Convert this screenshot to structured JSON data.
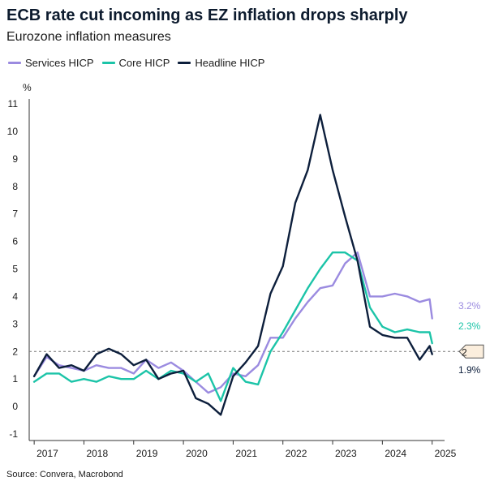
{
  "title": "ECB rate cut incoming as EZ inflation drops sharply",
  "subtitle": "Eurozone inflation measures",
  "source": "Source: Convera, Macrobond",
  "colors": {
    "services": "#9b8be0",
    "core": "#1cc4a8",
    "headline": "#0d1f3c"
  },
  "chart_data": {
    "type": "line",
    "title": "ECB rate cut incoming as EZ inflation drops sharply",
    "ylabel": "%",
    "ylim": [
      -1,
      11
    ],
    "yticks": [
      "-1",
      "0",
      "1",
      "2",
      "3",
      "4",
      "5",
      "6",
      "7",
      "8",
      "9",
      "10",
      "11"
    ],
    "xlim": [
      2016.9,
      2025.25
    ],
    "xticks": [
      {
        "pos": 2017,
        "label": "2017"
      },
      {
        "pos": 2018,
        "label": "2018"
      },
      {
        "pos": 2019,
        "label": "2019"
      },
      {
        "pos": 2020,
        "label": "2020"
      },
      {
        "pos": 2021,
        "label": "2021"
      },
      {
        "pos": 2022,
        "label": "2022"
      },
      {
        "pos": 2023,
        "label": "2023"
      },
      {
        "pos": 2024,
        "label": "2024"
      },
      {
        "pos": 2025,
        "label": "2025"
      }
    ],
    "reference_line": 2,
    "reference_label": "2",
    "series": [
      {
        "name": "Services HICP",
        "color": "#9b8be0",
        "end_label": "3.2%",
        "x": [
          2017.0,
          2017.25,
          2017.5,
          2017.75,
          2018.0,
          2018.25,
          2018.5,
          2018.75,
          2019.0,
          2019.25,
          2019.5,
          2019.75,
          2020.0,
          2020.25,
          2020.5,
          2020.75,
          2021.0,
          2021.25,
          2021.5,
          2021.75,
          2022.0,
          2022.25,
          2022.5,
          2022.75,
          2023.0,
          2023.25,
          2023.5,
          2023.75,
          2024.0,
          2024.25,
          2024.5,
          2024.75,
          2024.95,
          2025.0
        ],
        "values": [
          1.1,
          1.8,
          1.5,
          1.4,
          1.3,
          1.5,
          1.4,
          1.4,
          1.2,
          1.7,
          1.4,
          1.6,
          1.3,
          0.9,
          0.5,
          0.7,
          1.2,
          1.1,
          1.5,
          2.5,
          2.5,
          3.2,
          3.8,
          4.3,
          4.4,
          5.2,
          5.6,
          4.0,
          4.0,
          4.1,
          4.0,
          3.8,
          3.9,
          3.2
        ]
      },
      {
        "name": "Core HICP",
        "color": "#1cc4a8",
        "end_label": "2.3%",
        "x": [
          2017.0,
          2017.25,
          2017.5,
          2017.75,
          2018.0,
          2018.25,
          2018.5,
          2018.75,
          2019.0,
          2019.25,
          2019.5,
          2019.75,
          2020.0,
          2020.25,
          2020.5,
          2020.75,
          2021.0,
          2021.25,
          2021.5,
          2021.75,
          2022.0,
          2022.25,
          2022.5,
          2022.75,
          2023.0,
          2023.25,
          2023.5,
          2023.75,
          2024.0,
          2024.25,
          2024.5,
          2024.75,
          2024.95,
          2025.0
        ],
        "values": [
          0.9,
          1.2,
          1.2,
          0.9,
          1.0,
          0.9,
          1.1,
          1.0,
          1.0,
          1.3,
          1.0,
          1.3,
          1.2,
          0.9,
          1.2,
          0.2,
          1.4,
          0.9,
          0.8,
          2.0,
          2.7,
          3.5,
          4.3,
          5.0,
          5.6,
          5.6,
          5.3,
          3.6,
          2.9,
          2.7,
          2.8,
          2.7,
          2.7,
          2.3
        ]
      },
      {
        "name": "Headline HICP",
        "color": "#0d1f3c",
        "end_label": "1.9%",
        "x": [
          2017.0,
          2017.25,
          2017.5,
          2017.75,
          2018.0,
          2018.25,
          2018.5,
          2018.75,
          2019.0,
          2019.25,
          2019.5,
          2019.75,
          2020.0,
          2020.25,
          2020.5,
          2020.75,
          2021.0,
          2021.25,
          2021.5,
          2021.75,
          2022.0,
          2022.25,
          2022.5,
          2022.75,
          2023.0,
          2023.25,
          2023.5,
          2023.75,
          2024.0,
          2024.25,
          2024.5,
          2024.75,
          2024.95,
          2025.0
        ],
        "values": [
          1.1,
          1.9,
          1.4,
          1.5,
          1.3,
          1.9,
          2.1,
          1.9,
          1.5,
          1.7,
          1.0,
          1.2,
          1.3,
          0.3,
          0.1,
          -0.3,
          1.1,
          1.6,
          2.2,
          4.1,
          5.1,
          7.4,
          8.6,
          10.6,
          8.6,
          6.9,
          5.3,
          2.9,
          2.6,
          2.5,
          2.5,
          1.7,
          2.2,
          1.9
        ]
      }
    ]
  }
}
